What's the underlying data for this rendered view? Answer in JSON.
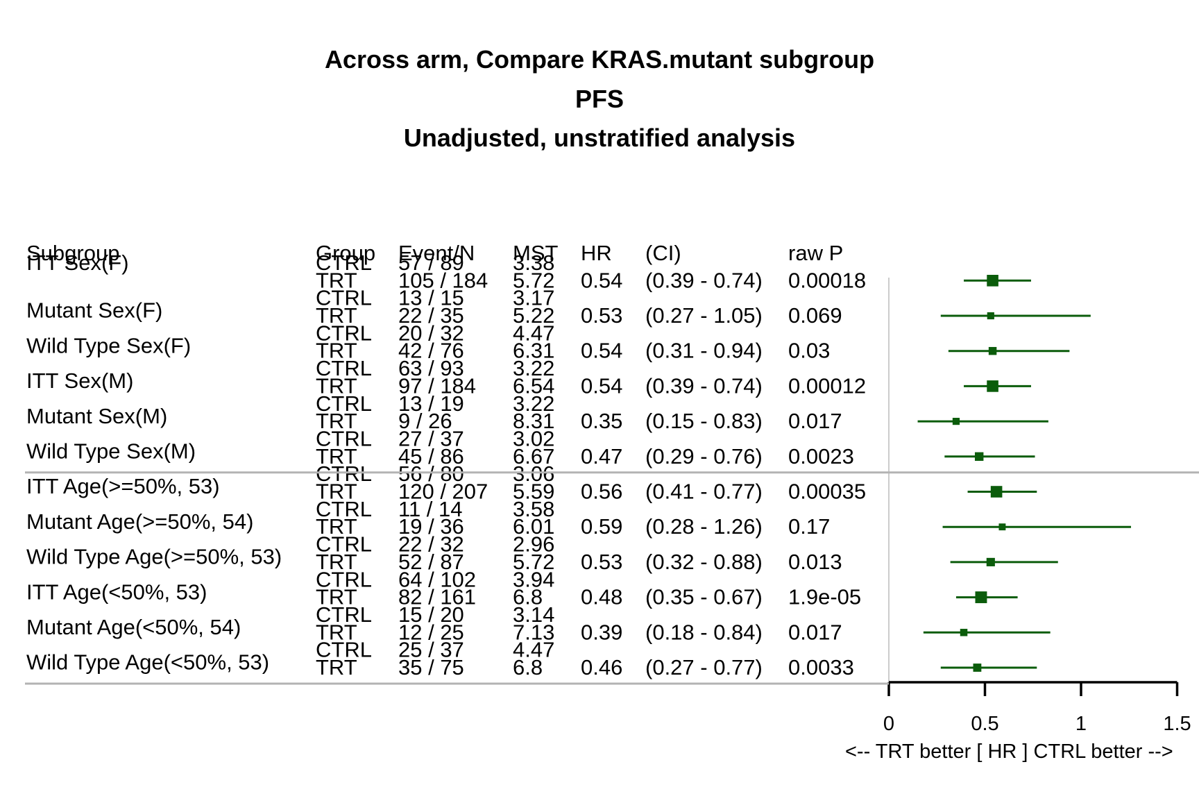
{
  "chart_data": {
    "type": "forest",
    "title_lines": [
      "Across arm, Compare KRAS.mutant subgroup",
      "PFS",
      "Unadjusted, unstratified analysis"
    ],
    "columns": [
      "Subgroup",
      "Group",
      "Event/N",
      "MST",
      "HR",
      "(CI)",
      "raw P"
    ],
    "subgroups": [
      {
        "name": "ITT Sex(F)",
        "ctrl": {
          "events": "57 / 89",
          "mst": "3.38"
        },
        "trt": {
          "events": "105 / 184",
          "mst": "5.72"
        },
        "hr": 0.54,
        "hr_text": "0.54",
        "ci_low": 0.39,
        "ci_high": 0.74,
        "ci_text": "(0.39 - 0.74)",
        "p": "0.00018",
        "weight": 3
      },
      {
        "name": "Mutant Sex(F)",
        "ctrl": {
          "events": "13 / 15",
          "mst": "3.17"
        },
        "trt": {
          "events": "22 / 35",
          "mst": "5.22"
        },
        "hr": 0.53,
        "hr_text": "0.53",
        "ci_low": 0.27,
        "ci_high": 1.05,
        "ci_text": "(0.27 - 1.05)",
        "p": "0.069",
        "weight": 1
      },
      {
        "name": "Wild Type Sex(F)",
        "ctrl": {
          "events": "20 / 32",
          "mst": "4.47"
        },
        "trt": {
          "events": "42 / 76",
          "mst": "6.31"
        },
        "hr": 0.54,
        "hr_text": "0.54",
        "ci_low": 0.31,
        "ci_high": 0.94,
        "ci_text": "(0.31 - 0.94)",
        "p": "0.03",
        "weight": 1.4
      },
      {
        "name": "ITT Sex(M)",
        "ctrl": {
          "events": "63 / 93",
          "mst": "3.22"
        },
        "trt": {
          "events": "97 / 184",
          "mst": "6.54"
        },
        "hr": 0.54,
        "hr_text": "0.54",
        "ci_low": 0.39,
        "ci_high": 0.74,
        "ci_text": "(0.39 - 0.74)",
        "p": "0.00012",
        "weight": 3
      },
      {
        "name": "Mutant Sex(M)",
        "ctrl": {
          "events": "13 / 19",
          "mst": "3.22"
        },
        "trt": {
          "events": "9 / 26",
          "mst": "8.31"
        },
        "hr": 0.35,
        "hr_text": "0.35",
        "ci_low": 0.15,
        "ci_high": 0.83,
        "ci_text": "(0.15 - 0.83)",
        "p": "0.017",
        "weight": 1
      },
      {
        "name": "Wild Type Sex(M)",
        "ctrl": {
          "events": "27 / 37",
          "mst": "3.02"
        },
        "trt": {
          "events": "45 / 86",
          "mst": "6.67"
        },
        "hr": 0.47,
        "hr_text": "0.47",
        "ci_low": 0.29,
        "ci_high": 0.76,
        "ci_text": "(0.29 - 0.76)",
        "p": "0.0023",
        "weight": 1.7
      },
      {
        "name": "ITT Age(>=50%, 53)",
        "ctrl": {
          "events": "56 / 80",
          "mst": "3.06"
        },
        "trt": {
          "events": "120 / 207",
          "mst": "5.59"
        },
        "hr": 0.56,
        "hr_text": "0.56",
        "ci_low": 0.41,
        "ci_high": 0.77,
        "ci_text": "(0.41 - 0.77)",
        "p": "0.00035",
        "weight": 3
      },
      {
        "name": "Mutant Age(>=50%, 54)",
        "ctrl": {
          "events": "11 / 14",
          "mst": "3.58"
        },
        "trt": {
          "events": "19 / 36",
          "mst": "6.01"
        },
        "hr": 0.59,
        "hr_text": "0.59",
        "ci_low": 0.28,
        "ci_high": 1.26,
        "ci_text": "(0.28 - 1.26)",
        "p": "0.17",
        "weight": 0.9
      },
      {
        "name": "Wild Type Age(>=50%, 53)",
        "ctrl": {
          "events": "22 / 32",
          "mst": "2.96"
        },
        "trt": {
          "events": "52 / 87",
          "mst": "5.72"
        },
        "hr": 0.53,
        "hr_text": "0.53",
        "ci_low": 0.32,
        "ci_high": 0.88,
        "ci_text": "(0.32 - 0.88)",
        "p": "0.013",
        "weight": 1.6
      },
      {
        "name": "ITT Age(<50%, 53)",
        "ctrl": {
          "events": "64 / 102",
          "mst": "3.94"
        },
        "trt": {
          "events": "82 / 161",
          "mst": "6.8"
        },
        "hr": 0.48,
        "hr_text": "0.48",
        "ci_low": 0.35,
        "ci_high": 0.67,
        "ci_text": "(0.35 - 0.67)",
        "p": "1.9e-05",
        "weight": 3.1
      },
      {
        "name": "Mutant Age(<50%, 54)",
        "ctrl": {
          "events": "15 / 20",
          "mst": "3.14"
        },
        "trt": {
          "events": "12 / 25",
          "mst": "7.13"
        },
        "hr": 0.39,
        "hr_text": "0.39",
        "ci_low": 0.18,
        "ci_high": 0.84,
        "ci_text": "(0.18 - 0.84)",
        "p": "0.017",
        "weight": 1.1
      },
      {
        "name": "Wild Type Age(<50%, 53)",
        "ctrl": {
          "events": "25 / 37",
          "mst": "4.47"
        },
        "trt": {
          "events": "35 / 75",
          "mst": "6.8"
        },
        "hr": 0.46,
        "hr_text": "0.46",
        "ci_low": 0.27,
        "ci_high": 0.77,
        "ci_text": "(0.27 - 0.77)",
        "p": "0.0033",
        "weight": 1.5
      }
    ],
    "group_labels": {
      "ctrl": "CTRL",
      "trt": "TRT"
    },
    "x_axis": {
      "range": [
        0,
        1.5
      ],
      "ticks": [
        0,
        0.5,
        1,
        1.5
      ],
      "tick_labels": [
        "0",
        "0.5",
        "1",
        "1.5"
      ],
      "label": "<--  TRT better [ HR ]  CTRL better -->",
      "reference_line": 0
    },
    "colors": {
      "point": "#0b5c0b",
      "ci_line": "#0b5c0b",
      "separator": "#b3b3b3",
      "axis": "#000000",
      "reference": "#cccccc"
    }
  }
}
